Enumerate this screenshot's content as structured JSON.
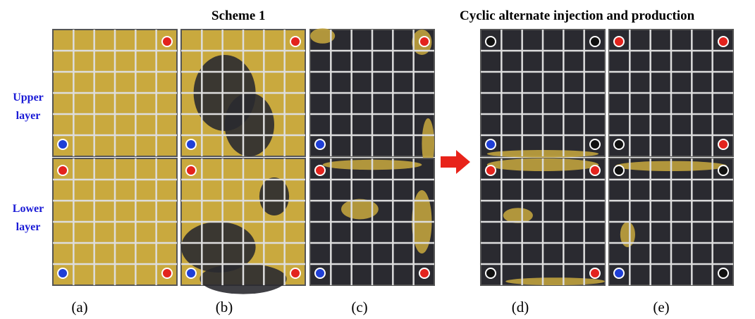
{
  "titles": {
    "scheme": "Scheme 1",
    "cyclic": "Cyclic alternate injection and production"
  },
  "layers": {
    "upper": "Upper layer",
    "lower": "Lower layer"
  },
  "panels": [
    "(a)",
    "(b)",
    "(c)",
    "(d)",
    "(e)"
  ]
}
